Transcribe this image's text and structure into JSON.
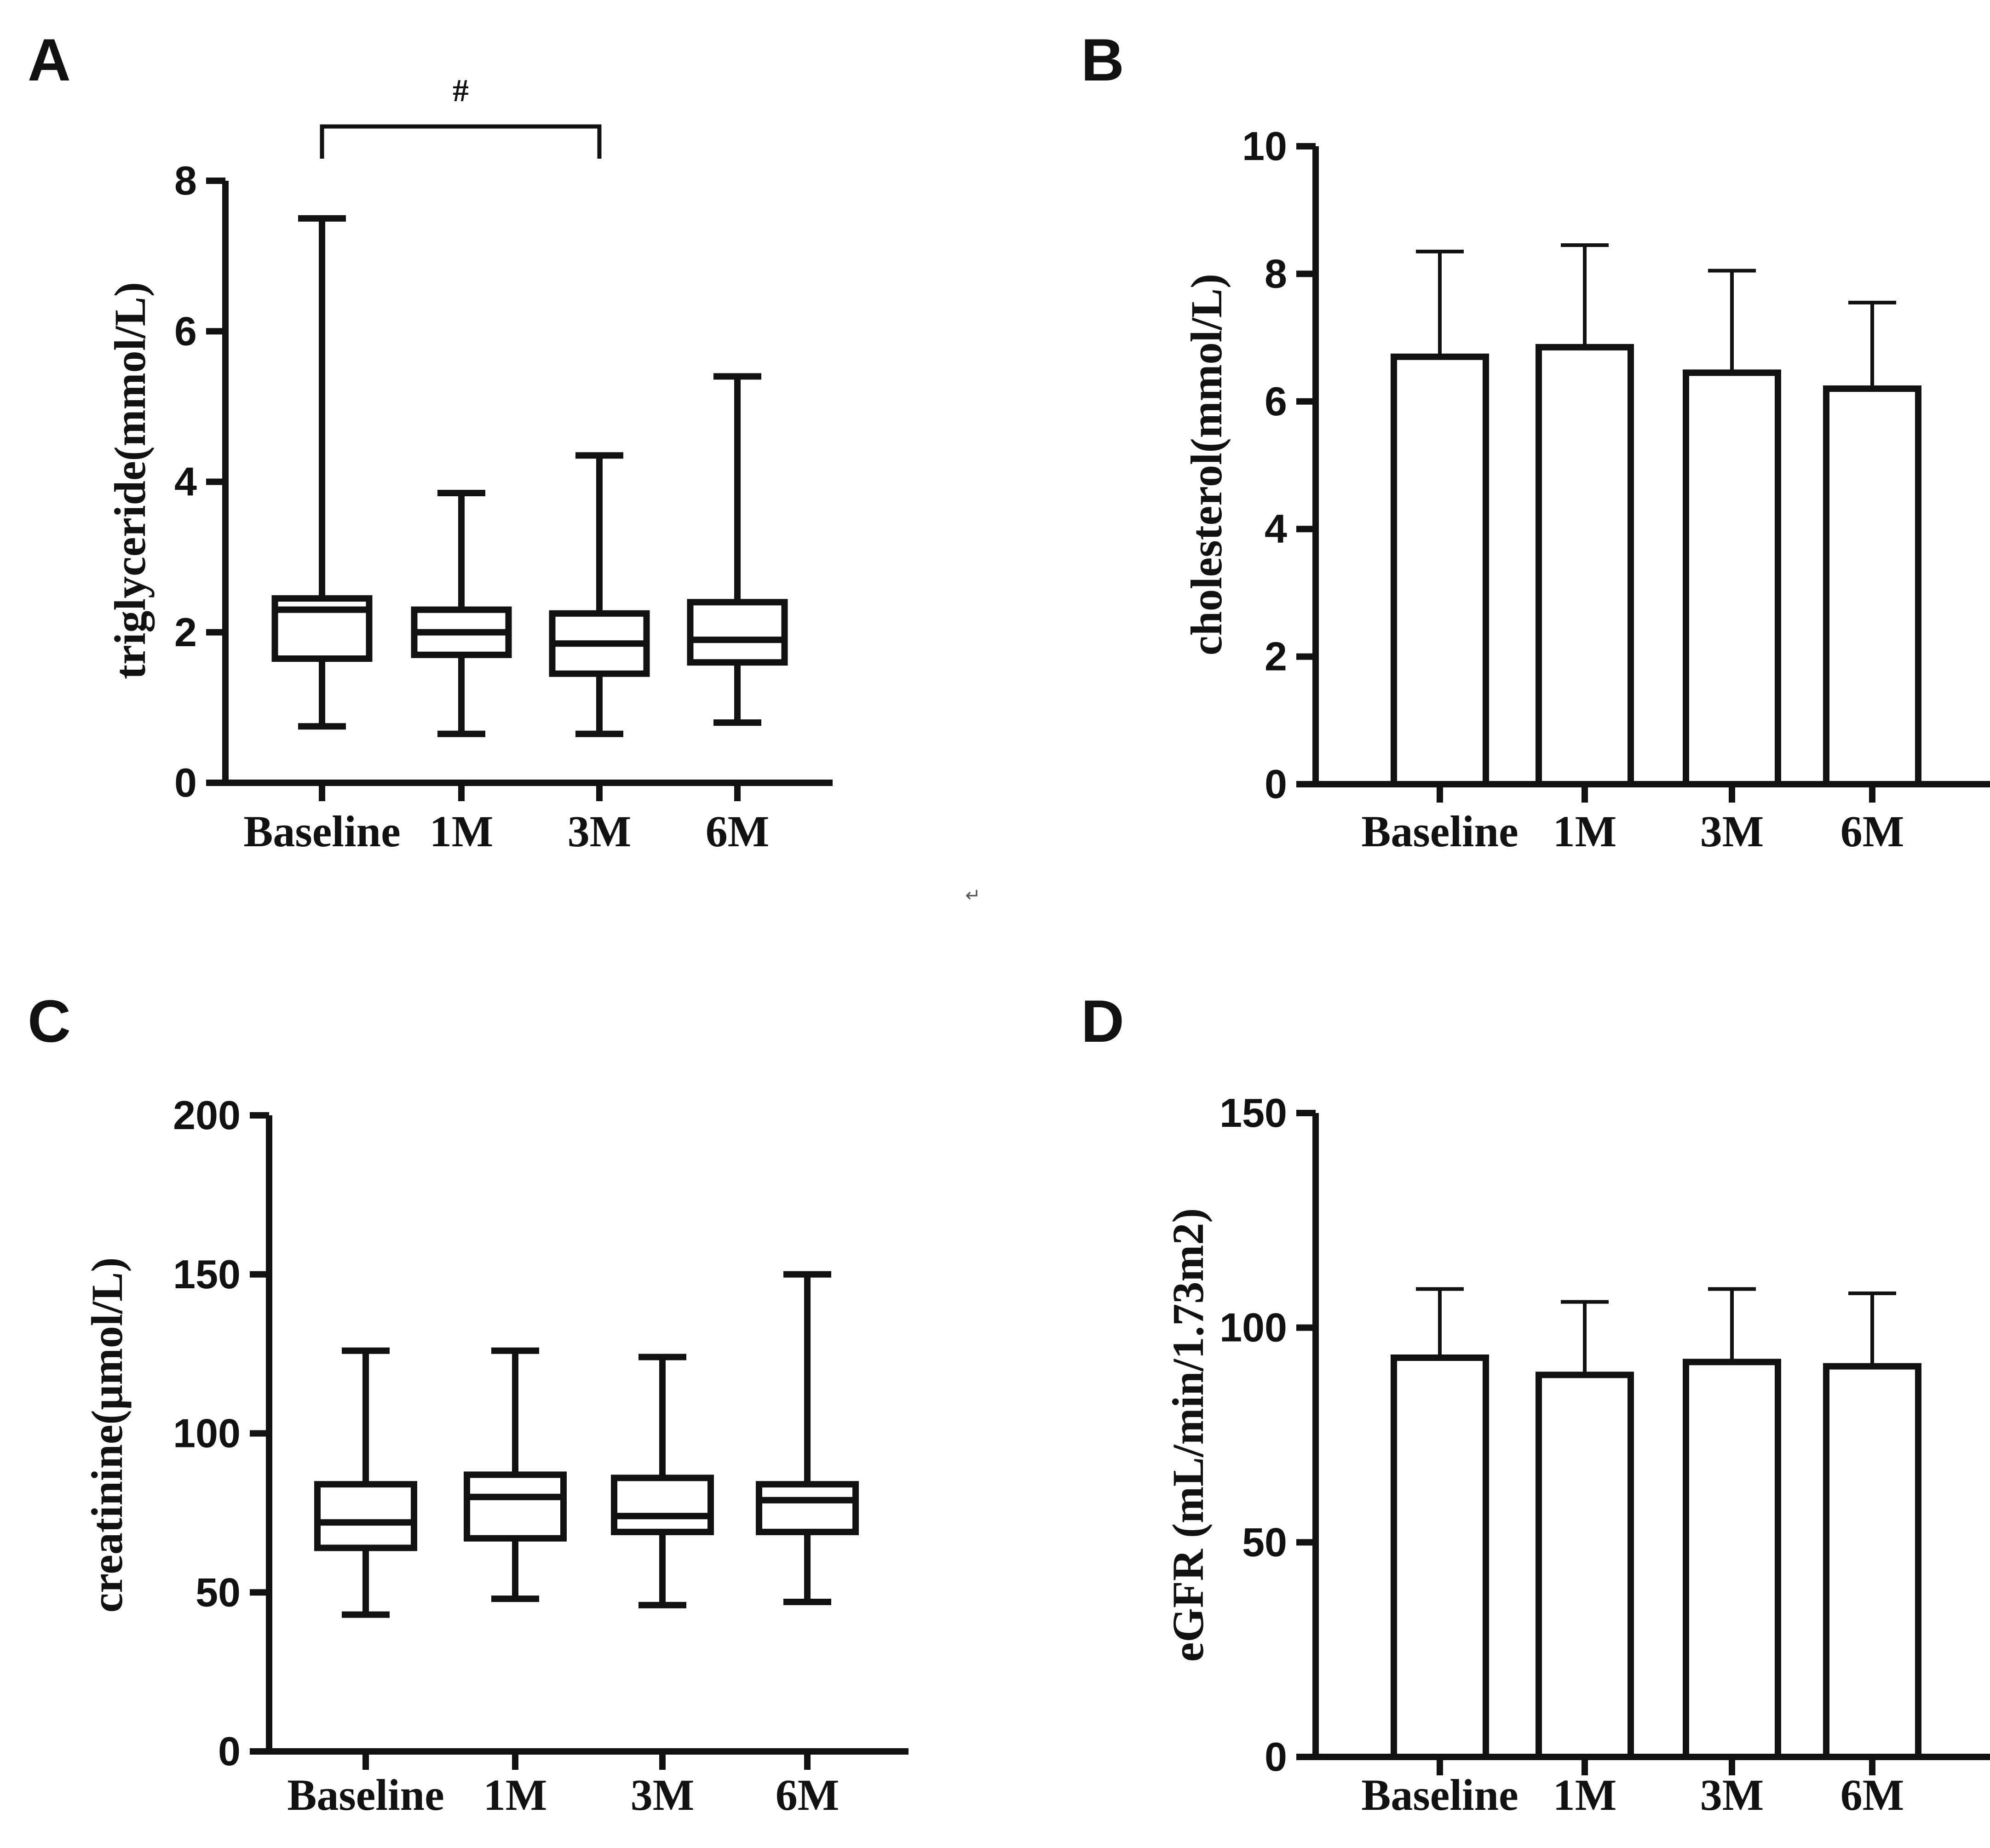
{
  "chart_data": [
    {
      "panel": "A",
      "type": "box",
      "ylabel": "triglyceride(mmol/L)",
      "ylim": [
        0,
        8
      ],
      "yticks": [
        0,
        2,
        4,
        6,
        8
      ],
      "categories": [
        "Baseline",
        "1M",
        "3M",
        "6M"
      ],
      "boxes": [
        {
          "min": 0.75,
          "q1": 1.65,
          "median": 2.3,
          "q3": 2.45,
          "max": 7.5
        },
        {
          "min": 0.65,
          "q1": 1.7,
          "median": 2.0,
          "q3": 2.3,
          "max": 3.85
        },
        {
          "min": 0.65,
          "q1": 1.45,
          "median": 1.85,
          "q3": 2.25,
          "max": 4.35
        },
        {
          "min": 0.8,
          "q1": 1.6,
          "median": 1.9,
          "q3": 2.4,
          "max": 5.4
        }
      ],
      "significance": {
        "from": 0,
        "to": 2,
        "label": "#"
      }
    },
    {
      "panel": "B",
      "type": "bar",
      "ylabel": "cholesterol(mmol/L)",
      "ylim": [
        0,
        10
      ],
      "yticks": [
        0,
        2,
        4,
        6,
        8,
        10
      ],
      "categories": [
        "Baseline",
        "1M",
        "3M",
        "6M"
      ],
      "values": [
        6.7,
        6.85,
        6.45,
        6.2
      ],
      "errors": [
        1.65,
        1.6,
        1.6,
        1.35
      ]
    },
    {
      "panel": "C",
      "type": "box",
      "ylabel": "creatinine(μmol/L)",
      "ylim": [
        0,
        200
      ],
      "yticks": [
        0,
        50,
        100,
        150,
        200
      ],
      "categories": [
        "Baseline",
        "1M",
        "3M",
        "6M"
      ],
      "boxes": [
        {
          "min": 43,
          "q1": 64,
          "median": 72,
          "q3": 84,
          "max": 126
        },
        {
          "min": 48,
          "q1": 67,
          "median": 80,
          "q3": 87,
          "max": 126
        },
        {
          "min": 46,
          "q1": 69,
          "median": 74,
          "q3": 86,
          "max": 124
        },
        {
          "min": 47,
          "q1": 69,
          "median": 79,
          "q3": 84,
          "max": 150
        }
      ]
    },
    {
      "panel": "D",
      "type": "bar",
      "ylabel": "eGFR (mL/min/1.73m2)",
      "ylim": [
        0,
        150
      ],
      "yticks": [
        0,
        50,
        100,
        150
      ],
      "categories": [
        "Baseline",
        "1M",
        "3M",
        "6M"
      ],
      "values": [
        93,
        89,
        92,
        91
      ],
      "errors": [
        16,
        17,
        17,
        17
      ]
    }
  ],
  "misc": {
    "return_mark": "↵"
  }
}
